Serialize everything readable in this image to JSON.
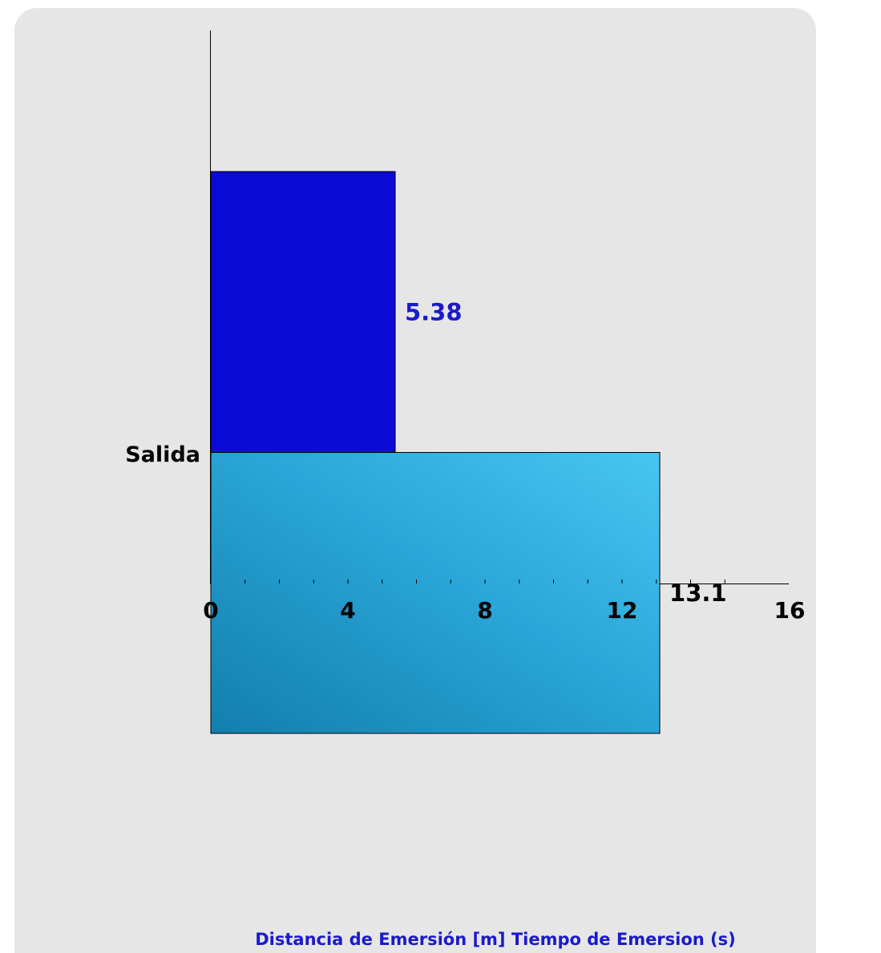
{
  "chart_data": {
    "type": "bar",
    "orientation": "horizontal",
    "categories": [
      "Salida"
    ],
    "series": [
      {
        "name": "Distancia de Emersión [m]",
        "values": [
          5.38
        ],
        "color": "#0a0ad6",
        "label_color": "#1a1acc"
      },
      {
        "name": "Tiempo de Emersion (s)",
        "values": [
          13.1
        ],
        "color": "#2ba4d6",
        "label_color": "#000000"
      }
    ],
    "data_labels": [
      "5.38",
      "13.1"
    ],
    "xlim": [
      0,
      16
    ],
    "xticks": [
      0,
      4,
      8,
      12,
      16
    ],
    "xtick_labels": [
      "0",
      "4",
      "8",
      "12",
      "16"
    ],
    "minor_tick_step": 1,
    "xlabel": "Distancia de Emersión [m] Tiempo de Emersion (s)",
    "xlabel_color": "#1a1acc",
    "grid": false,
    "legend": "none"
  }
}
